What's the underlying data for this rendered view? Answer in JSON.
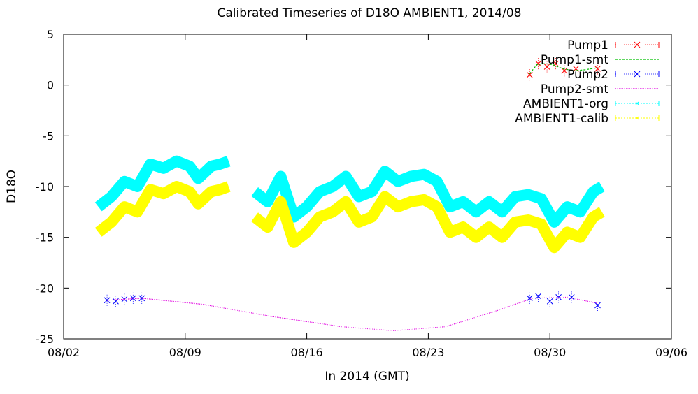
{
  "chart_data": {
    "type": "line",
    "title": "Calibrated Timeseries of D18O AMBIENT1, 2014/08",
    "xlabel": "In 2014 (GMT)",
    "ylabel": "D18O",
    "xlim": [
      "2014-08-02",
      "2014-09-06"
    ],
    "ylim": [
      -25,
      5
    ],
    "x_ticks": [
      "08/02",
      "08/09",
      "08/16",
      "08/23",
      "08/30",
      "09/06"
    ],
    "y_ticks": [
      5,
      0,
      -5,
      -10,
      -15,
      -20,
      -25
    ],
    "grid": false,
    "legend_position": "top-right",
    "series": [
      {
        "name": "Pump1",
        "style": "points-errorbars",
        "marker": "x",
        "color": "#ff0000",
        "points": [
          {
            "x": "2014-08-28 20:00",
            "y": 1.0
          },
          {
            "x": "2014-08-29 08:00",
            "y": 2.1
          },
          {
            "x": "2014-08-29 20:00",
            "y": 1.8
          },
          {
            "x": "2014-08-30 08:00",
            "y": 2.1
          },
          {
            "x": "2014-08-30 20:00",
            "y": 1.4
          },
          {
            "x": "2014-08-31 12:00",
            "y": 1.6
          },
          {
            "x": "2014-09-01 18:00",
            "y": 1.6
          }
        ]
      },
      {
        "name": "Pump1-smt",
        "style": "dashed-line",
        "color": "#00c000",
        "points": [
          {
            "x": "2014-08-28 20:00",
            "y": 1.1
          },
          {
            "x": "2014-08-29 06:00",
            "y": 2.0
          },
          {
            "x": "2014-08-29 16:00",
            "y": 2.1
          },
          {
            "x": "2014-08-30 04:00",
            "y": 2.0
          },
          {
            "x": "2014-08-30 18:00",
            "y": 1.6
          },
          {
            "x": "2014-08-31 10:00",
            "y": 1.4
          },
          {
            "x": "2014-09-01 00:00",
            "y": 1.5
          },
          {
            "x": "2014-09-01 18:00",
            "y": 1.7
          }
        ]
      },
      {
        "name": "Pump2",
        "style": "points-errorbars",
        "marker": "x",
        "color": "#0000ff",
        "points": [
          {
            "x": "2014-08-04 12:00",
            "y": -21.2
          },
          {
            "x": "2014-08-05 00:00",
            "y": -21.3
          },
          {
            "x": "2014-08-05 12:00",
            "y": -21.1
          },
          {
            "x": "2014-08-06 00:00",
            "y": -21.0
          },
          {
            "x": "2014-08-06 12:00",
            "y": -21.0
          },
          {
            "x": "2014-08-28 20:00",
            "y": -21.0
          },
          {
            "x": "2014-08-29 08:00",
            "y": -20.8
          },
          {
            "x": "2014-08-30 00:00",
            "y": -21.3
          },
          {
            "x": "2014-08-30 12:00",
            "y": -20.9
          },
          {
            "x": "2014-08-31 06:00",
            "y": -20.9
          },
          {
            "x": "2014-09-01 18:00",
            "y": -21.7
          }
        ]
      },
      {
        "name": "Pump2-smt",
        "style": "dotted-line",
        "color": "#e000e0",
        "points": [
          {
            "x": "2014-08-04 12:00",
            "y": -21.2
          },
          {
            "x": "2014-08-06 12:00",
            "y": -21.0
          },
          {
            "x": "2014-08-10 00:00",
            "y": -21.6
          },
          {
            "x": "2014-08-14 00:00",
            "y": -22.8
          },
          {
            "x": "2014-08-18 00:00",
            "y": -23.8
          },
          {
            "x": "2014-08-21 00:00",
            "y": -24.2
          },
          {
            "x": "2014-08-24 00:00",
            "y": -23.8
          },
          {
            "x": "2014-08-27 00:00",
            "y": -22.2
          },
          {
            "x": "2014-08-29 00:00",
            "y": -21.0
          },
          {
            "x": "2014-08-31 00:00",
            "y": -20.9
          },
          {
            "x": "2014-09-01 18:00",
            "y": -21.5
          }
        ]
      },
      {
        "name": "AMBIENT1-org",
        "style": "dense-points",
        "color": "#00ffff",
        "points": [
          {
            "x": "2014-08-04 00:00",
            "y": -12.0
          },
          {
            "x": "2014-08-04 18:00",
            "y": -11.0
          },
          {
            "x": "2014-08-05 12:00",
            "y": -9.5
          },
          {
            "x": "2014-08-06 06:00",
            "y": -10.0
          },
          {
            "x": "2014-08-07 00:00",
            "y": -7.8
          },
          {
            "x": "2014-08-07 18:00",
            "y": -8.2
          },
          {
            "x": "2014-08-08 12:00",
            "y": -7.5
          },
          {
            "x": "2014-08-09 06:00",
            "y": -8.0
          },
          {
            "x": "2014-08-09 18:00",
            "y": -9.2
          },
          {
            "x": "2014-08-10 12:00",
            "y": -8.0
          },
          {
            "x": "2014-08-11 00:00",
            "y": -7.8
          },
          {
            "x": "2014-08-11 12:00",
            "y": -7.5
          },
          {
            "x": "2014-08-11 20:00",
            "y": null
          },
          {
            "x": "2014-08-13 00:00",
            "y": -10.5
          },
          {
            "x": "2014-08-13 18:00",
            "y": -11.5
          },
          {
            "x": "2014-08-14 12:00",
            "y": -9.0
          },
          {
            "x": "2014-08-15 06:00",
            "y": -13.0
          },
          {
            "x": "2014-08-16 00:00",
            "y": -12.0
          },
          {
            "x": "2014-08-16 18:00",
            "y": -10.5
          },
          {
            "x": "2014-08-17 12:00",
            "y": -10.0
          },
          {
            "x": "2014-08-18 06:00",
            "y": -9.0
          },
          {
            "x": "2014-08-19 00:00",
            "y": -11.0
          },
          {
            "x": "2014-08-19 18:00",
            "y": -10.5
          },
          {
            "x": "2014-08-20 12:00",
            "y": -8.5
          },
          {
            "x": "2014-08-21 06:00",
            "y": -9.5
          },
          {
            "x": "2014-08-22 00:00",
            "y": -9.0
          },
          {
            "x": "2014-08-22 18:00",
            "y": -8.8
          },
          {
            "x": "2014-08-23 12:00",
            "y": -9.5
          },
          {
            "x": "2014-08-24 06:00",
            "y": -12.0
          },
          {
            "x": "2014-08-25 00:00",
            "y": -11.5
          },
          {
            "x": "2014-08-25 18:00",
            "y": -12.5
          },
          {
            "x": "2014-08-26 12:00",
            "y": -11.5
          },
          {
            "x": "2014-08-27 06:00",
            "y": -12.5
          },
          {
            "x": "2014-08-28 00:00",
            "y": -11.0
          },
          {
            "x": "2014-08-28 18:00",
            "y": -10.8
          },
          {
            "x": "2014-08-29 12:00",
            "y": -11.2
          },
          {
            "x": "2014-08-30 06:00",
            "y": -13.5
          },
          {
            "x": "2014-08-31 00:00",
            "y": -12.0
          },
          {
            "x": "2014-08-31 18:00",
            "y": -12.5
          },
          {
            "x": "2014-09-01 12:00",
            "y": -10.5
          },
          {
            "x": "2014-09-02 00:00",
            "y": -10.0
          }
        ]
      },
      {
        "name": "AMBIENT1-calib",
        "style": "dense-points",
        "color": "#ffff00",
        "points": [
          {
            "x": "2014-08-04 00:00",
            "y": -14.5
          },
          {
            "x": "2014-08-04 18:00",
            "y": -13.5
          },
          {
            "x": "2014-08-05 12:00",
            "y": -12.0
          },
          {
            "x": "2014-08-06 06:00",
            "y": -12.5
          },
          {
            "x": "2014-08-07 00:00",
            "y": -10.3
          },
          {
            "x": "2014-08-07 18:00",
            "y": -10.7
          },
          {
            "x": "2014-08-08 12:00",
            "y": -10.0
          },
          {
            "x": "2014-08-09 06:00",
            "y": -10.5
          },
          {
            "x": "2014-08-09 18:00",
            "y": -11.7
          },
          {
            "x": "2014-08-10 12:00",
            "y": -10.5
          },
          {
            "x": "2014-08-11 00:00",
            "y": -10.3
          },
          {
            "x": "2014-08-11 12:00",
            "y": -10.0
          },
          {
            "x": "2014-08-11 20:00",
            "y": null
          },
          {
            "x": "2014-08-13 00:00",
            "y": -13.0
          },
          {
            "x": "2014-08-13 18:00",
            "y": -14.0
          },
          {
            "x": "2014-08-14 12:00",
            "y": -11.5
          },
          {
            "x": "2014-08-15 06:00",
            "y": -15.5
          },
          {
            "x": "2014-08-16 00:00",
            "y": -14.5
          },
          {
            "x": "2014-08-16 18:00",
            "y": -13.0
          },
          {
            "x": "2014-08-17 12:00",
            "y": -12.5
          },
          {
            "x": "2014-08-18 06:00",
            "y": -11.5
          },
          {
            "x": "2014-08-19 00:00",
            "y": -13.5
          },
          {
            "x": "2014-08-19 18:00",
            "y": -13.0
          },
          {
            "x": "2014-08-20 12:00",
            "y": -11.0
          },
          {
            "x": "2014-08-21 06:00",
            "y": -12.0
          },
          {
            "x": "2014-08-22 00:00",
            "y": -11.5
          },
          {
            "x": "2014-08-22 18:00",
            "y": -11.3
          },
          {
            "x": "2014-08-23 12:00",
            "y": -12.0
          },
          {
            "x": "2014-08-24 06:00",
            "y": -14.5
          },
          {
            "x": "2014-08-25 00:00",
            "y": -14.0
          },
          {
            "x": "2014-08-25 18:00",
            "y": -15.0
          },
          {
            "x": "2014-08-26 12:00",
            "y": -14.0
          },
          {
            "x": "2014-08-27 06:00",
            "y": -15.0
          },
          {
            "x": "2014-08-28 00:00",
            "y": -13.5
          },
          {
            "x": "2014-08-28 18:00",
            "y": -13.3
          },
          {
            "x": "2014-08-29 12:00",
            "y": -13.7
          },
          {
            "x": "2014-08-30 06:00",
            "y": -16.0
          },
          {
            "x": "2014-08-31 00:00",
            "y": -14.5
          },
          {
            "x": "2014-08-31 18:00",
            "y": -15.0
          },
          {
            "x": "2014-09-01 12:00",
            "y": -13.0
          },
          {
            "x": "2014-09-02 00:00",
            "y": -12.5
          }
        ]
      }
    ]
  }
}
